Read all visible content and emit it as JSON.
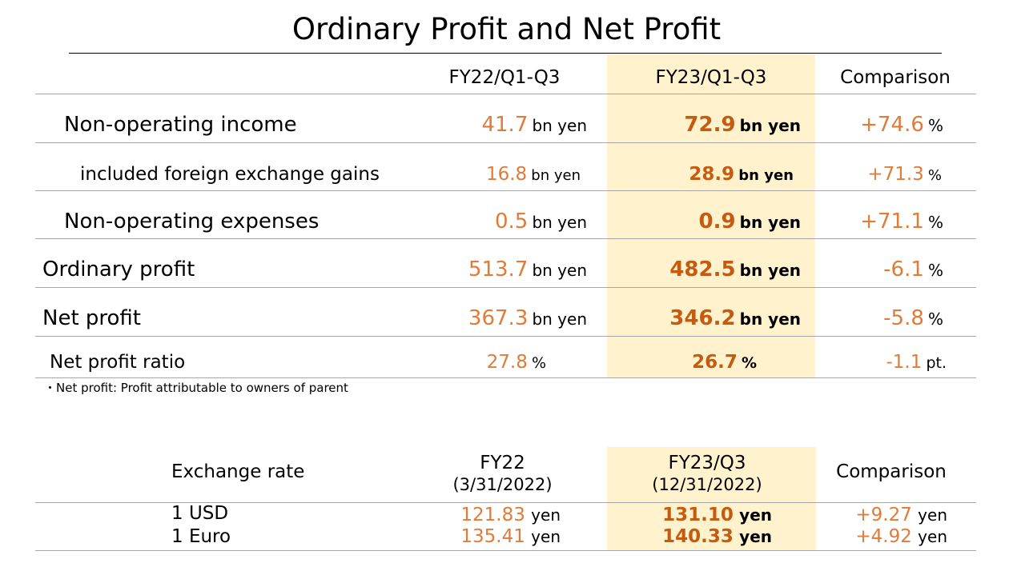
{
  "title": "Ordinary Profit and Net Profit",
  "profit_table": {
    "columns": [
      "FY22/Q1-Q3",
      "FY23/Q1-Q3",
      "Comparison"
    ],
    "rows": [
      {
        "label": "Non-operating income",
        "fy22": "41.7",
        "fy22_unit": "bn yen",
        "fy23": "72.9",
        "fy23_unit": "bn yen",
        "cmp": "+74.6",
        "cmp_unit": "%"
      },
      {
        "label": "included foreign exchange gains",
        "fy22": "16.8",
        "fy22_unit": "bn yen",
        "fy23": "28.9",
        "fy23_unit": "bn yen",
        "cmp": "+71.3",
        "cmp_unit": "%"
      },
      {
        "label": "Non-operating expenses",
        "fy22": "0.5",
        "fy22_unit": "bn yen",
        "fy23": "0.9",
        "fy23_unit": "bn yen",
        "cmp": "+71.1",
        "cmp_unit": "%"
      },
      {
        "label": "Ordinary profit",
        "fy22": "513.7",
        "fy22_unit": "bn yen",
        "fy23": "482.5",
        "fy23_unit": "bn yen",
        "cmp": "-6.1",
        "cmp_unit": "%"
      },
      {
        "label": "Net profit",
        "fy22": "367.3",
        "fy22_unit": "bn yen",
        "fy23": "346.2",
        "fy23_unit": "bn yen",
        "cmp": "-5.8",
        "cmp_unit": "%"
      },
      {
        "label": "Net profit ratio",
        "fy22": "27.8",
        "fy22_unit": "%",
        "fy23": "26.7",
        "fy23_unit": "%",
        "cmp": "-1.1",
        "cmp_unit": "pt."
      }
    ],
    "note": "・Net profit: Profit attributable to owners of parent"
  },
  "exchange_table": {
    "label": "Exchange rate",
    "col1_title": "FY22",
    "col1_date": "(3/31/2022)",
    "col2_title": "FY23/Q3",
    "col2_date": "(12/31/2022)",
    "col3_title": "Comparison",
    "rows": [
      {
        "label": "1 USD",
        "fy22": "121.83",
        "fy22_unit": "yen",
        "fy23": "131.10",
        "fy23_unit": "yen",
        "cmp": "+9.27",
        "cmp_unit": "yen"
      },
      {
        "label": "1 Euro",
        "fy22": "135.41",
        "fy22_unit": "yen",
        "fy23": "140.33",
        "fy23_unit": "yen",
        "cmp": "+4.92",
        "cmp_unit": "yen"
      }
    ]
  },
  "colors": {
    "highlight": "#fff2cc",
    "value_orange": "#e07b39",
    "value_bold": "#c55a11"
  }
}
